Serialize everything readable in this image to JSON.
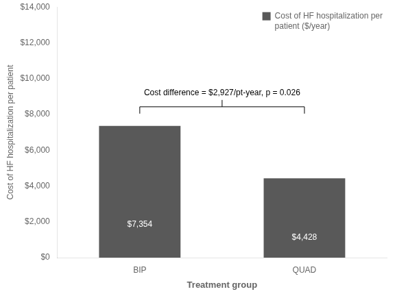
{
  "chart_data": {
    "type": "bar",
    "categories": [
      "BIP",
      "QUAD"
    ],
    "series": [
      {
        "name": "Cost of HF hospitalization per\npatient ($/year)",
        "color": "#595959",
        "values": [
          7354,
          4428
        ],
        "value_labels": [
          "$7,354",
          "$4,428"
        ]
      }
    ],
    "data_labels": true,
    "xlabel": "Treatment group",
    "ylabel": "Cost of HF hospitalization per patient",
    "ylim": [
      0,
      14000
    ],
    "yticks": [
      {
        "value": 0,
        "label": "$0"
      },
      {
        "value": 2000,
        "label": "$2,000"
      },
      {
        "value": 4000,
        "label": "$4,000"
      },
      {
        "value": 6000,
        "label": "$6,000"
      },
      {
        "value": 8000,
        "label": "$8,000"
      },
      {
        "value": 10000,
        "label": "$10,000"
      },
      {
        "value": 12000,
        "label": "$12,000"
      },
      {
        "value": 14000,
        "label": "$14,000"
      }
    ],
    "annotation": "Cost difference = $2,927/pt-year, p = 0.026",
    "legend": "upper right",
    "grid": false
  }
}
